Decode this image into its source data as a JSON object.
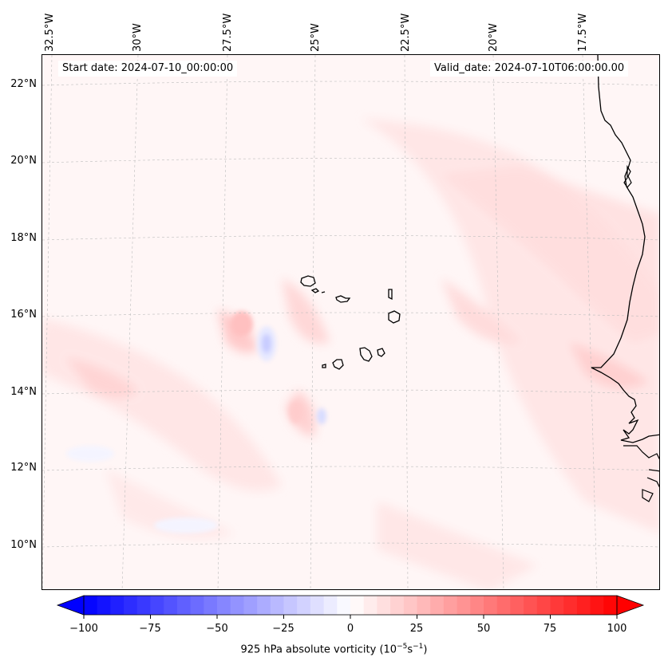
{
  "map": {
    "start_date": "Start date: 2024-07-10_00:00:00",
    "valid_date": "Valid_date: 2024-07-10T06:00:00.00",
    "lon_labels": [
      "32.5°W",
      "30°W",
      "27.5°W",
      "25°W",
      "22.5°W",
      "20°W",
      "17.5°W"
    ],
    "lat_labels": [
      "22°N",
      "20°N",
      "18°N",
      "16°N",
      "14°N",
      "12°N",
      "10°N"
    ]
  },
  "colorbar": {
    "label_prefix": "925 hPa absolute vorticity (10",
    "label_exp1": "−5",
    "label_mid": "s",
    "label_exp2": "−1",
    "label_suffix": ")",
    "ticks": [
      "−100",
      "−75",
      "−50",
      "−25",
      "0",
      "25",
      "50",
      "75",
      "100"
    ],
    "min": -100,
    "max": 100,
    "levels": 40,
    "colors": {
      "negative": "#0000ff",
      "neutral": "#ffffff",
      "positive": "#ff0000"
    }
  }
}
